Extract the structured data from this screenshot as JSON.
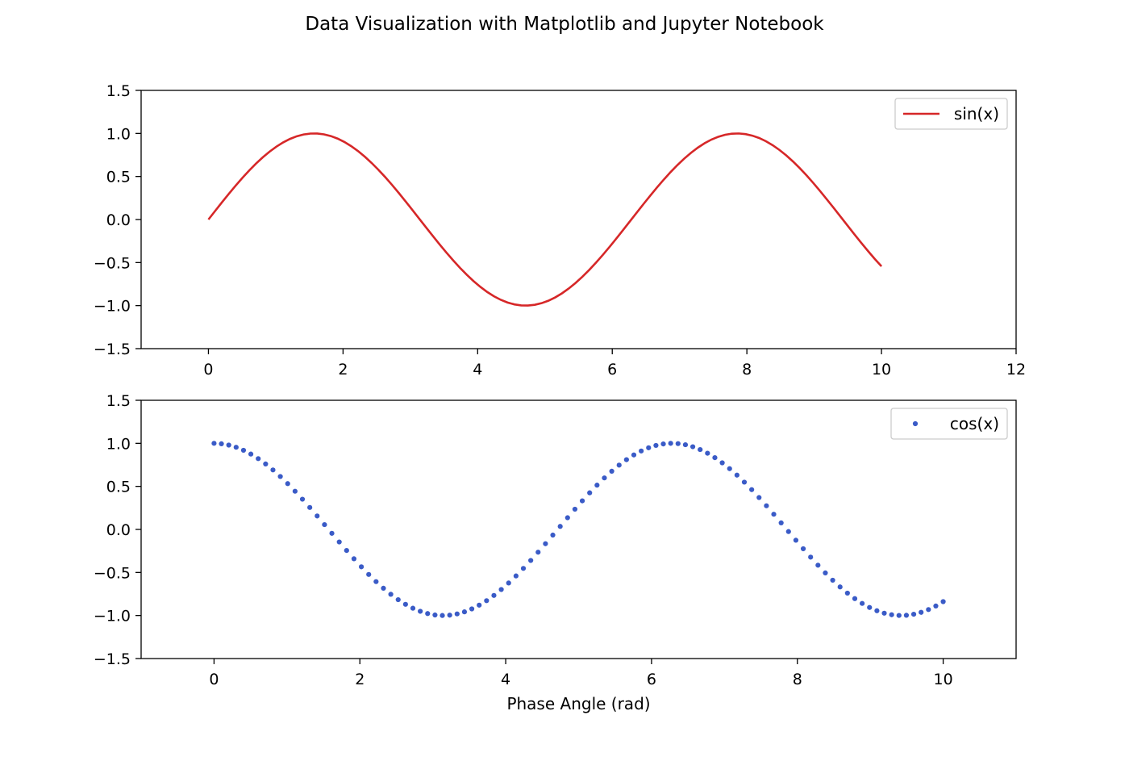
{
  "figure": {
    "suptitle": "Data Visualization with Matplotlib and Jupyter Notebook"
  },
  "colors": {
    "sin_line": "#d62728",
    "cos_points": "#3a5bc7",
    "axes_edge": "#000000",
    "legend_edge": "#cccccc"
  },
  "chart_data": [
    {
      "type": "line",
      "title": "",
      "xlabel": "",
      "ylabel": "",
      "xlim": [
        -1,
        12
      ],
      "ylim": [
        -1.5,
        1.5
      ],
      "xticks": [
        0,
        2,
        4,
        6,
        8,
        10,
        12
      ],
      "yticks": [
        1.5,
        1.0,
        0.5,
        0.0,
        -0.5,
        -1.0,
        -1.5
      ],
      "ytick_labels": [
        "1.5",
        "1.0",
        "0.5",
        "0.0",
        "−0.5",
        "−1.0",
        "−1.5"
      ],
      "xtick_labels": [
        "0",
        "2",
        "4",
        "6",
        "8",
        "10",
        "12"
      ],
      "grid": false,
      "legend_position": "upper right",
      "series": [
        {
          "name": "sin(x)",
          "function": "sin",
          "x_range": [
            0,
            10
          ],
          "num_points": 100,
          "marker": "line"
        }
      ]
    },
    {
      "type": "scatter",
      "title": "",
      "xlabel": "Phase Angle (rad)",
      "ylabel": "",
      "xlim": [
        -1,
        11
      ],
      "ylim": [
        -1.5,
        1.5
      ],
      "xticks": [
        0,
        2,
        4,
        6,
        8,
        10
      ],
      "yticks": [
        1.5,
        1.0,
        0.5,
        0.0,
        -0.5,
        -1.0,
        -1.5
      ],
      "ytick_labels": [
        "1.5",
        "1.0",
        "0.5",
        "0.0",
        "−0.5",
        "−1.0",
        "−1.5"
      ],
      "xtick_labels": [
        "0",
        "2",
        "4",
        "6",
        "8",
        "10"
      ],
      "grid": false,
      "legend_position": "upper right",
      "series": [
        {
          "name": "cos(x)",
          "function": "cos",
          "x_range": [
            0,
            10
          ],
          "num_points": 100,
          "marker": "dot"
        }
      ]
    }
  ]
}
